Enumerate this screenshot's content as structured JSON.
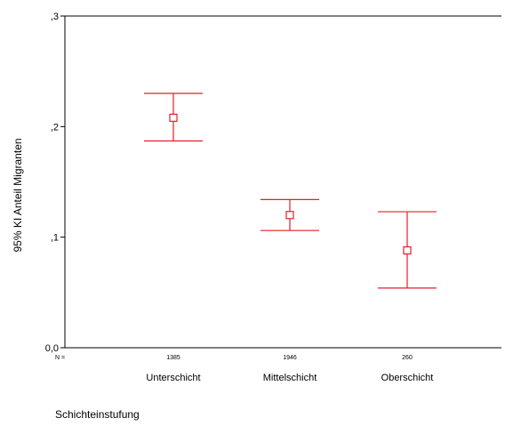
{
  "chart_data": {
    "type": "errorbar",
    "title": "",
    "xlabel": "Schichteinstufung",
    "ylabel": "95% KI Anteil Migranten",
    "ylim": [
      0,
      0.3
    ],
    "yticks": [
      0,
      0.1,
      0.2,
      0.3
    ],
    "ytick_labels": [
      "0,0",
      ",1",
      ",2",
      ",3"
    ],
    "n_prefix": "N =",
    "categories": [
      "Unterschicht",
      "Mittelschicht",
      "Oberschicht"
    ],
    "n": [
      "1385",
      "1946",
      "260"
    ],
    "means": [
      0.208,
      0.12,
      0.088
    ],
    "lower": [
      0.187,
      0.106,
      0.054
    ],
    "upper": [
      0.23,
      0.134,
      0.123
    ],
    "grid": false,
    "color": "#e0202a"
  }
}
